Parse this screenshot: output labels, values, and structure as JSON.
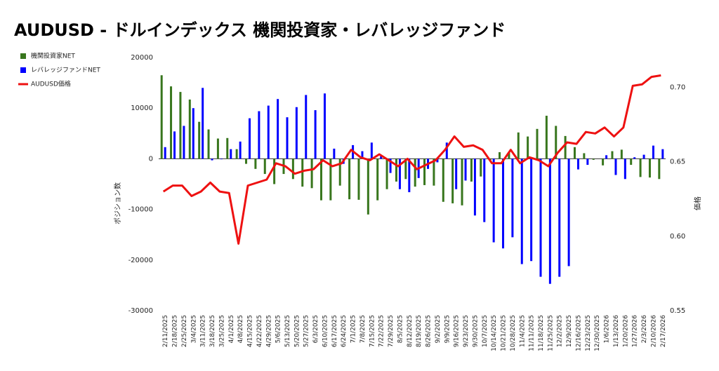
{
  "chart_data": {
    "type": "bar-line",
    "title": "AUDUSD - ドルインデックス 機関投資家・レバレッジファンド",
    "ylabel": "ポジション数",
    "y2label": "価格",
    "categories": [
      "2/11/2025",
      "2/18/2025",
      "2/25/2025",
      "3/4/2025",
      "3/11/2025",
      "3/18/2025",
      "3/25/2025",
      "4/1/2025",
      "4/8/2025",
      "4/15/2025",
      "4/22/2025",
      "4/29/2025",
      "5/6/2025",
      "5/13/2025",
      "5/20/2025",
      "5/27/2025",
      "6/3/2025",
      "6/10/2025",
      "6/17/2025",
      "6/24/2025",
      "7/1/2025",
      "7/8/2025",
      "7/15/2025",
      "7/22/2025",
      "7/29/2025",
      "8/5/2025",
      "8/12/2025",
      "8/19/2025",
      "8/26/2025",
      "9/2/2025",
      "9/9/2025",
      "9/16/2025",
      "9/23/2025",
      "9/30/2025",
      "10/7/2025",
      "10/14/2025",
      "10/21/2025",
      "10/28/2025",
      "11/4/2025",
      "11/11/2025",
      "11/18/2025",
      "11/25/2025",
      "12/2/2025",
      "12/9/2025",
      "12/16/2025",
      "12/23/2025",
      "12/30/2025",
      "1/6/2026",
      "1/13/2026",
      "1/20/2026",
      "1/27/2026",
      "2/3/2026",
      "2/10/2026",
      "2/17/2026"
    ],
    "series": [
      {
        "name": "機関投資家NET",
        "color": "#38761d",
        "kind": "bar",
        "values": [
          16500,
          14300,
          13200,
          11700,
          7300,
          5800,
          4000,
          4100,
          1900,
          -1000,
          -2000,
          -3000,
          -5000,
          -3000,
          -4000,
          -5500,
          -5800,
          -8200,
          -8200,
          -5300,
          -8000,
          -8100,
          -11000,
          -8200,
          -6000,
          -4500,
          -4000,
          -5500,
          -5200,
          -5300,
          -8500,
          -8800,
          -9200,
          -4500,
          -3500,
          -300,
          1300,
          1300,
          5200,
          4400,
          5900,
          8500,
          6500,
          4500,
          2300,
          1100,
          -200,
          -1300,
          1500,
          1800,
          -1200,
          -3600,
          -3700,
          -4000
        ]
      },
      {
        "name": "レバレッジファンドNET",
        "color": "#0000ff",
        "kind": "bar",
        "values": [
          2300,
          5400,
          6500,
          10000,
          14000,
          -300,
          -100,
          1900,
          3400,
          8000,
          9400,
          10500,
          11800,
          8200,
          10200,
          12600,
          9600,
          12900,
          2000,
          -1000,
          2700,
          1500,
          3200,
          500,
          -2800,
          -6000,
          -6600,
          -3800,
          -2000,
          -700,
          3200,
          -6000,
          -4300,
          -11200,
          -12500,
          -16500,
          -17700,
          -15500,
          -20800,
          -20200,
          -23300,
          -24700,
          -23300,
          -21200,
          -2100,
          -1200,
          0,
          700,
          -3200,
          -4000,
          300,
          800,
          2600,
          1900
        ]
      },
      {
        "name": "AUDUSD価格",
        "color": "#ee1111",
        "kind": "line",
        "axis": "y2",
        "values": [
          0.63,
          0.634,
          0.634,
          0.627,
          0.63,
          0.636,
          0.63,
          0.629,
          0.595,
          0.634,
          0.636,
          0.638,
          0.649,
          0.647,
          0.642,
          0.644,
          0.645,
          0.651,
          0.647,
          0.649,
          0.658,
          0.653,
          0.651,
          0.655,
          0.651,
          0.647,
          0.652,
          0.645,
          0.648,
          0.651,
          0.658,
          0.667,
          0.66,
          0.661,
          0.658,
          0.649,
          0.649,
          0.658,
          0.649,
          0.653,
          0.651,
          0.647,
          0.656,
          0.663,
          0.662,
          0.67,
          0.669,
          0.673,
          0.667,
          0.673,
          0.701,
          0.702,
          0.707,
          0.708
        ]
      }
    ],
    "ylim": [
      -30000,
      20000
    ],
    "yticks": [
      -30000,
      -20000,
      -10000,
      0,
      10000,
      20000
    ],
    "y2lim": [
      0.55,
      0.72
    ],
    "y2ticks": [
      0.55,
      {
        "value": 0.6,
        "label": "0.60"
      },
      0.65,
      {
        "value": 0.7,
        "label": "0.70"
      }
    ],
    "legend": "top-left"
  }
}
